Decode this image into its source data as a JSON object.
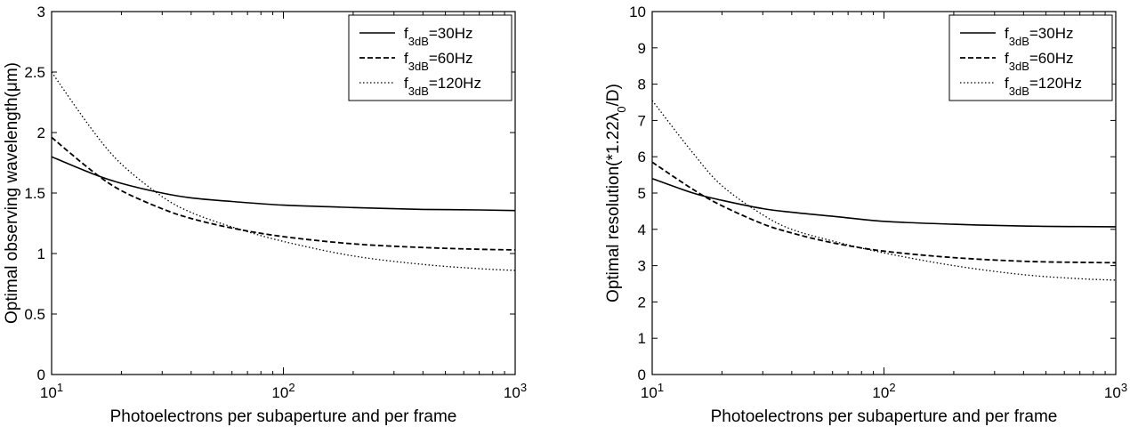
{
  "chart_data": [
    {
      "type": "line",
      "title": "",
      "xlabel": "Photoelectrons per subaperture and per frame",
      "ylabel": "Optimal observing wavelength(μm)",
      "xscale": "log",
      "xlim": [
        10,
        1000
      ],
      "ylim": [
        0,
        3
      ],
      "xticks": [
        {
          "base": "10",
          "exp": "1",
          "value": 10
        },
        {
          "base": "10",
          "exp": "2",
          "value": 100
        },
        {
          "base": "10",
          "exp": "3",
          "value": 1000
        }
      ],
      "yticks": [
        "0",
        "0.5",
        "1",
        "1.5",
        "2",
        "2.5",
        "3"
      ],
      "grid": false,
      "legend_position": "top-right",
      "series": [
        {
          "name": "f3dB=30Hz",
          "legend": {
            "main": "f",
            "sub": "3dB",
            "rest": "=30Hz"
          },
          "style": "solid",
          "x": [
            10,
            15,
            20,
            30,
            40,
            60,
            100,
            200,
            400,
            700,
            1000
          ],
          "y": [
            1.8,
            1.66,
            1.58,
            1.5,
            1.46,
            1.43,
            1.4,
            1.38,
            1.365,
            1.36,
            1.355
          ]
        },
        {
          "name": "f3dB=60Hz",
          "legend": {
            "main": "f",
            "sub": "3dB",
            "rest": "=60Hz"
          },
          "style": "dashed",
          "x": [
            10,
            15,
            20,
            30,
            40,
            60,
            100,
            200,
            400,
            700,
            1000
          ],
          "y": [
            1.96,
            1.68,
            1.52,
            1.37,
            1.29,
            1.21,
            1.14,
            1.08,
            1.05,
            1.035,
            1.03
          ]
        },
        {
          "name": "f3dB=120Hz",
          "legend": {
            "main": "f",
            "sub": "3dB",
            "rest": "=120Hz"
          },
          "style": "dotted",
          "x": [
            10,
            15,
            20,
            30,
            40,
            60,
            100,
            200,
            400,
            700,
            1000
          ],
          "y": [
            2.5,
            2.02,
            1.74,
            1.47,
            1.34,
            1.22,
            1.1,
            0.98,
            0.91,
            0.875,
            0.86
          ]
        }
      ]
    },
    {
      "type": "line",
      "title": "",
      "xlabel": "Photoelectrons per subaperture and per frame",
      "ylabel": {
        "main": "Optimal resolution(*1.22λ",
        "sub": "0",
        "rest": "/D)"
      },
      "xscale": "log",
      "xlim": [
        10,
        1000
      ],
      "ylim": [
        0,
        10
      ],
      "xticks": [
        {
          "base": "10",
          "exp": "1",
          "value": 10
        },
        {
          "base": "10",
          "exp": "2",
          "value": 100
        },
        {
          "base": "10",
          "exp": "3",
          "value": 1000
        }
      ],
      "yticks": [
        "0",
        "1",
        "2",
        "3",
        "4",
        "5",
        "6",
        "7",
        "8",
        "9",
        "10"
      ],
      "grid": false,
      "legend_position": "top-right",
      "series": [
        {
          "name": "f3dB=30Hz",
          "legend": {
            "main": "f",
            "sub": "3dB",
            "rest": "=30Hz"
          },
          "style": "solid",
          "x": [
            10,
            15,
            20,
            30,
            40,
            60,
            100,
            200,
            400,
            700,
            1000
          ],
          "y": [
            5.4,
            5.0,
            4.8,
            4.57,
            4.47,
            4.36,
            4.22,
            4.14,
            4.09,
            4.075,
            4.07
          ]
        },
        {
          "name": "f3dB=60Hz",
          "legend": {
            "main": "f",
            "sub": "3dB",
            "rest": "=60Hz"
          },
          "style": "dashed",
          "x": [
            10,
            15,
            20,
            30,
            40,
            60,
            100,
            200,
            400,
            700,
            1000
          ],
          "y": [
            5.85,
            5.1,
            4.65,
            4.15,
            3.9,
            3.63,
            3.4,
            3.22,
            3.12,
            3.09,
            3.08
          ]
        },
        {
          "name": "f3dB=120Hz",
          "legend": {
            "main": "f",
            "sub": "3dB",
            "rest": "=120Hz"
          },
          "style": "dotted",
          "x": [
            10,
            15,
            20,
            30,
            40,
            60,
            100,
            200,
            400,
            700,
            1000
          ],
          "y": [
            7.55,
            6.1,
            5.2,
            4.4,
            4.0,
            3.68,
            3.35,
            3.0,
            2.75,
            2.64,
            2.6
          ]
        }
      ]
    }
  ]
}
